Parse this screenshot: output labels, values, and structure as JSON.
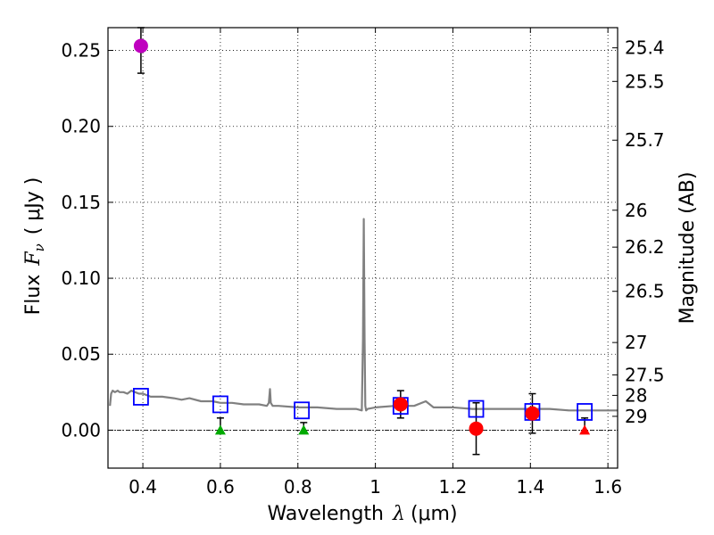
{
  "chart_data": {
    "type": "scatter",
    "xlabel_prefix": "Wavelength",
    "xlabel_symbol": "λ",
    "xlabel_unit": "(μm)",
    "ylabel_prefix": "Flux",
    "ylabel_symbol_base": "F",
    "ylabel_symbol_sub": "ν",
    "ylabel_unit": "( μJy )",
    "ylabel_right": "Magnitude (AB)",
    "xlim": [
      0.31,
      1.625
    ],
    "ylim": [
      -0.025,
      0.265
    ],
    "grid": true,
    "x_ticks": [
      0.4,
      0.6,
      0.8,
      1.0,
      1.2,
      1.4,
      1.6
    ],
    "x_tick_labels": [
      "0.4",
      "0.6",
      "0.8",
      "1",
      "1.2",
      "1.4",
      "1.6"
    ],
    "y_ticks": [
      0.0,
      0.05,
      0.1,
      0.15,
      0.2,
      0.25
    ],
    "y_tick_labels": [
      "0.00",
      "0.05",
      "0.10",
      "0.15",
      "0.20",
      "0.25"
    ],
    "right_ticks": [
      {
        "label": "25.4",
        "flux": 0.2517
      },
      {
        "label": "25.5",
        "flux": 0.2296
      },
      {
        "label": "25.7",
        "flux": 0.1909
      },
      {
        "label": "26",
        "flux": 0.1448
      },
      {
        "label": "26.2",
        "flux": 0.1205
      },
      {
        "label": "26.5",
        "flux": 0.0914
      },
      {
        "label": "27",
        "flux": 0.0577
      },
      {
        "label": "27.5",
        "flux": 0.0364
      },
      {
        "label": "28",
        "flux": 0.0229
      },
      {
        "label": "29",
        "flux": 0.0091
      }
    ],
    "sed_model": {
      "color": "#808080",
      "x": [
        0.315,
        0.318,
        0.322,
        0.328,
        0.335,
        0.34,
        0.35,
        0.36,
        0.37,
        0.38,
        0.39,
        0.4,
        0.42,
        0.45,
        0.48,
        0.5,
        0.52,
        0.55,
        0.58,
        0.6,
        0.63,
        0.66,
        0.7,
        0.72,
        0.725,
        0.728,
        0.73,
        0.735,
        0.75,
        0.8,
        0.85,
        0.9,
        0.95,
        0.965,
        0.968,
        0.97,
        0.972,
        0.974,
        0.976,
        0.98,
        1.0,
        1.05,
        1.1,
        1.13,
        1.15,
        1.2,
        1.25,
        1.3,
        1.35,
        1.4,
        1.45,
        1.5,
        1.55,
        1.6,
        1.625
      ],
      "y": [
        0.016,
        0.024,
        0.026,
        0.025,
        0.026,
        0.025,
        0.025,
        0.024,
        0.026,
        0.025,
        0.024,
        0.024,
        0.022,
        0.022,
        0.021,
        0.02,
        0.021,
        0.019,
        0.019,
        0.018,
        0.018,
        0.017,
        0.017,
        0.016,
        0.018,
        0.027,
        0.018,
        0.016,
        0.016,
        0.015,
        0.015,
        0.014,
        0.014,
        0.013,
        0.06,
        0.139,
        0.06,
        0.016,
        0.013,
        0.014,
        0.015,
        0.016,
        0.016,
        0.019,
        0.015,
        0.015,
        0.014,
        0.014,
        0.014,
        0.014,
        0.014,
        0.013,
        0.013,
        0.013,
        0.013
      ]
    },
    "series": [
      {
        "kind": "magenta-circle",
        "color": "#bf00bf",
        "points": [
          {
            "x": 0.395,
            "y": 0.253,
            "yerr_low": 0.235,
            "yerr_high": 0.265
          }
        ]
      },
      {
        "kind": "model-square",
        "color": "#0000ff",
        "points": [
          {
            "x": 0.395,
            "y": 0.022
          },
          {
            "x": 0.6,
            "y": 0.017
          },
          {
            "x": 0.81,
            "y": 0.013
          },
          {
            "x": 1.065,
            "y": 0.016
          },
          {
            "x": 1.26,
            "y": 0.014
          },
          {
            "x": 1.405,
            "y": 0.012
          },
          {
            "x": 1.54,
            "y": 0.012
          }
        ]
      },
      {
        "kind": "red-circle",
        "color": "#ff0000",
        "points": [
          {
            "x": 1.065,
            "y": 0.017,
            "yerr_low": 0.008,
            "yerr_high": 0.026
          },
          {
            "x": 1.26,
            "y": 0.001,
            "yerr_low": -0.016,
            "yerr_high": 0.018
          },
          {
            "x": 1.405,
            "y": 0.011,
            "yerr_low": -0.002,
            "yerr_high": 0.024
          }
        ]
      },
      {
        "kind": "green-triangle",
        "color": "#00aa00",
        "points": [
          {
            "x": 0.6,
            "y": 0.0,
            "yerr_low": 0.0,
            "yerr_high": 0.008
          },
          {
            "x": 0.815,
            "y": 0.0,
            "yerr_low": 0.0,
            "yerr_high": 0.005
          }
        ]
      },
      {
        "kind": "red-triangle",
        "color": "#ff0000",
        "points": [
          {
            "x": 1.54,
            "y": 0.0,
            "yerr_low": 0.0,
            "yerr_high": 0.008
          }
        ]
      }
    ]
  }
}
